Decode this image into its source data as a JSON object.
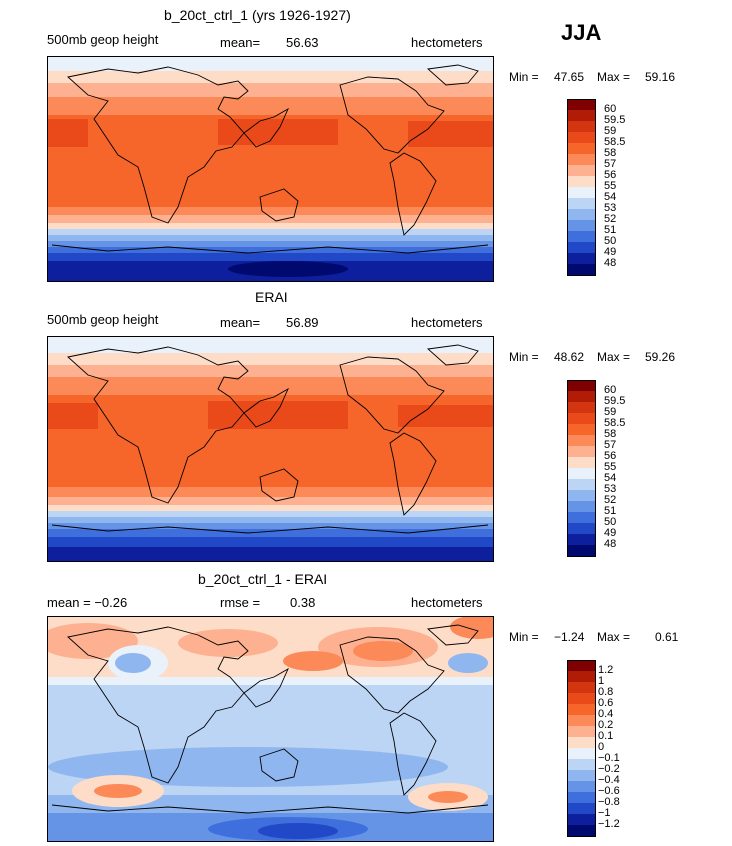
{
  "season": "JJA",
  "panels": [
    {
      "title": "b_20ct_ctrl_1 (yrs 1926-1927)",
      "left": "500mb geop height",
      "middle_label": "mean=",
      "middle_value": "56.63",
      "right": "hectometers",
      "min_label": "Min =",
      "min_value": "47.65",
      "max_label": "Max =",
      "max_value": "59.16"
    },
    {
      "title": "ERAI",
      "left": "500mb geop height",
      "middle_label": "mean=",
      "middle_value": "56.89",
      "right": "hectometers",
      "min_label": "Min =",
      "min_value": "48.62",
      "max_label": "Max =",
      "max_value": "59.26"
    },
    {
      "title": "b_20ct_ctrl_1 - ERAI",
      "left": "mean =  −0.26",
      "middle_label": "rmse =",
      "middle_value": "0.38",
      "right": "hectometers",
      "min_label": "Min =",
      "min_value": "−1.24",
      "max_label": "Max =",
      "max_value": "0.61"
    }
  ],
  "colorbar_abs": {
    "labels": [
      "60",
      "59.5",
      "59",
      "58.5",
      "58",
      "57",
      "56",
      "55",
      "54",
      "53",
      "52",
      "51",
      "50",
      "49",
      "48"
    ],
    "colors": [
      "#7f0000",
      "#b01c06",
      "#d23510",
      "#ea4a1a",
      "#f6662b",
      "#fb8a58",
      "#fdb190",
      "#fddcc8",
      "#e9f1fb",
      "#bcd5f5",
      "#8fb6ee",
      "#6594e6",
      "#3f6fdc",
      "#2148c6",
      "#0d1f9c",
      "#000a6e"
    ]
  },
  "colorbar_diff": {
    "labels": [
      "1.2",
      "1",
      "0.8",
      "0.6",
      "0.4",
      "0.2",
      "0.1",
      "0",
      "−0.1",
      "−0.2",
      "−0.4",
      "−0.6",
      "−0.8",
      "−1",
      "−1.2"
    ],
    "colors": [
      "#7f0000",
      "#b01c06",
      "#d23510",
      "#ea4a1a",
      "#f6662b",
      "#fb8a58",
      "#fdb190",
      "#fddcc8",
      "#e9f1fb",
      "#bcd5f5",
      "#8fb6ee",
      "#6594e6",
      "#3f6fdc",
      "#2148c6",
      "#0d1f9c",
      "#000a6e"
    ]
  }
}
